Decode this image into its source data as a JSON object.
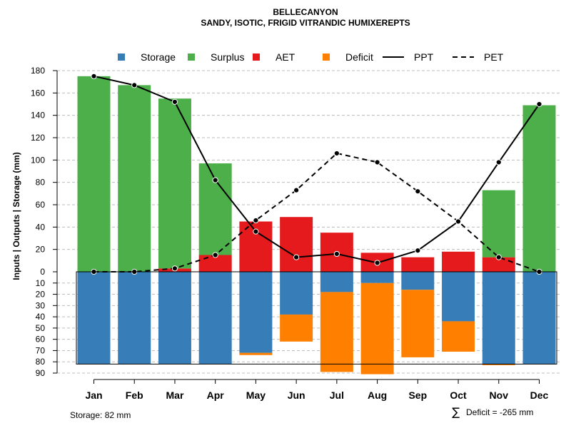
{
  "chart_data": {
    "type": "bar",
    "title": "BELLECANYON",
    "subtitle": "SANDY, ISOTIC, FRIGID VITRANDIC HUMIXEREPTS",
    "ylabel": "Inputs | Outputs | Storage    (mm)",
    "categories": [
      "Jan",
      "Feb",
      "Mar",
      "Apr",
      "May",
      "Jun",
      "Jul",
      "Aug",
      "Sep",
      "Oct",
      "Nov",
      "Dec"
    ],
    "ylim_top": [
      0,
      180
    ],
    "ylim_bottom": [
      0,
      90
    ],
    "yticks_top": [
      "0",
      "20",
      "40",
      "60",
      "80",
      "100",
      "120",
      "140",
      "160",
      "180"
    ],
    "yticks_bottom": [
      "10",
      "20",
      "30",
      "40",
      "50",
      "60",
      "70",
      "80",
      "90"
    ],
    "legend": [
      {
        "label": "Storage",
        "color": "#377eb8",
        "kind": "box"
      },
      {
        "label": "Surplus",
        "color": "#4daf4a",
        "kind": "box"
      },
      {
        "label": "AET",
        "color": "#e41a1c",
        "kind": "box"
      },
      {
        "label": "Deficit",
        "color": "#ff7f00",
        "kind": "box"
      },
      {
        "label": "PPT",
        "color": "#000000",
        "kind": "solid"
      },
      {
        "label": "PET",
        "color": "#000000",
        "kind": "dashed"
      }
    ],
    "series": [
      {
        "name": "Surplus",
        "color": "#4daf4a",
        "values": [
          175,
          167,
          152,
          82,
          0,
          0,
          0,
          0,
          0,
          0,
          60,
          149
        ]
      },
      {
        "name": "AET",
        "color": "#e41a1c",
        "values": [
          0,
          0,
          3,
          15,
          45,
          49,
          35,
          17,
          13,
          18,
          13,
          0
        ]
      },
      {
        "name": "Storage",
        "color": "#377eb8",
        "values": [
          82,
          82,
          82,
          82,
          72,
          38,
          18,
          10,
          16,
          44,
          82,
          82
        ]
      },
      {
        "name": "Deficit",
        "color": "#ff7f00",
        "values": [
          0,
          0,
          0,
          0,
          2,
          24,
          71,
          81,
          60,
          27,
          1,
          0
        ]
      },
      {
        "name": "PPT",
        "color": "#000000",
        "values": [
          175,
          167,
          152,
          82,
          36,
          13,
          16,
          8,
          19,
          45,
          98,
          150
        ]
      },
      {
        "name": "PET",
        "color": "#000000",
        "values": [
          0,
          0,
          3,
          15,
          46,
          73,
          106,
          98,
          72,
          45,
          13,
          0
        ]
      }
    ],
    "storage_capacity": 82,
    "storage_note": "Storage: 82 mm",
    "deficit_note": "Deficit = -265 mm",
    "deficit_symbol": "∑"
  }
}
